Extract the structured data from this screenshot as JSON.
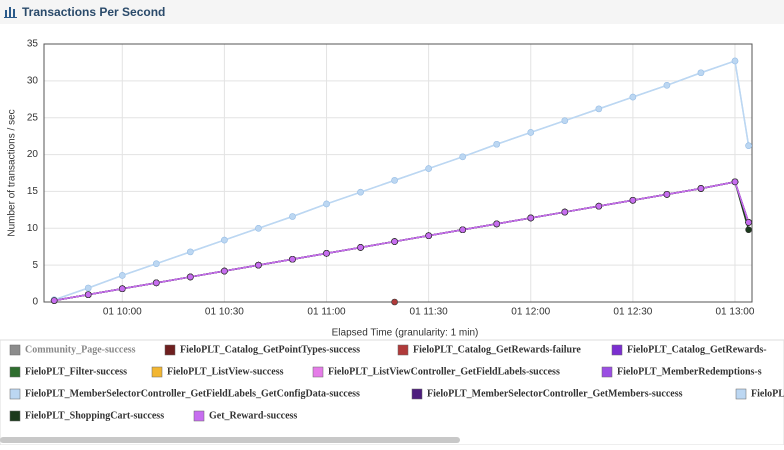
{
  "header": {
    "title": "Transactions Per Second"
  },
  "chart_data": {
    "type": "line",
    "y_label": "Number of transactions / sec",
    "x_label": "Elapsed Time (granularity: 1 min)",
    "xlim": [
      577,
      785
    ],
    "ylim": [
      0,
      35
    ],
    "yticks": [
      0,
      5,
      10,
      15,
      20,
      25,
      30,
      35
    ],
    "xticks": [
      {
        "value": 600,
        "label": "01 10:00"
      },
      {
        "value": 630,
        "label": "01 10:30"
      },
      {
        "value": 660,
        "label": "01 11:00"
      },
      {
        "value": 690,
        "label": "01 11:30"
      },
      {
        "value": 720,
        "label": "01 12:00"
      },
      {
        "value": 750,
        "label": "01 12:30"
      },
      {
        "value": 780,
        "label": "01 13:00"
      }
    ],
    "grid": true,
    "x": [
      580,
      590,
      600,
      610,
      620,
      630,
      640,
      650,
      660,
      670,
      680,
      690,
      700,
      710,
      720,
      730,
      740,
      750,
      760,
      770,
      780,
      784
    ],
    "series": [
      {
        "name": "Community_Page-success",
        "color": "#8c8c8c",
        "values": [
          0.2,
          1.0,
          1.8,
          2.6,
          3.4,
          4.2,
          5.0,
          5.8,
          6.6,
          7.4,
          8.2,
          9.0,
          9.8,
          10.6,
          11.4,
          12.2,
          13.0,
          13.8,
          14.6,
          15.4,
          16.3,
          10.8
        ]
      },
      {
        "name": "FieloPLT_Catalog_GetPointTypes-success",
        "color": "#6e1f1f",
        "values": [
          0.2,
          1.0,
          1.8,
          2.6,
          3.4,
          4.2,
          5.0,
          5.8,
          6.6,
          7.4,
          8.2,
          9.0,
          9.8,
          10.6,
          11.4,
          12.2,
          13.0,
          13.8,
          14.6,
          15.4,
          16.3,
          10.8
        ]
      },
      {
        "name": "FieloPLT_Catalog_GetRewards-failure",
        "color": "#b03a3a",
        "values": [
          null,
          null,
          null,
          null,
          null,
          null,
          null,
          null,
          null,
          null,
          0,
          null,
          null,
          null,
          null,
          null,
          null,
          null,
          null,
          null,
          null,
          null
        ]
      },
      {
        "name": "FieloPLT_Catalog_GetRewards-",
        "color": "#7b2fd0",
        "values": [
          0.2,
          1.0,
          1.8,
          2.6,
          3.4,
          4.2,
          5.0,
          5.8,
          6.6,
          7.4,
          8.2,
          9.0,
          9.8,
          10.6,
          11.4,
          12.2,
          13.0,
          13.8,
          14.6,
          15.4,
          16.3,
          10.8
        ]
      },
      {
        "name": "FieloPLT_Filter-success",
        "color": "#2f6e2f",
        "values": [
          0.2,
          1.0,
          1.8,
          2.6,
          3.4,
          4.2,
          5.0,
          5.8,
          6.6,
          7.4,
          8.2,
          9.0,
          9.8,
          10.6,
          11.4,
          12.2,
          13.0,
          13.8,
          14.6,
          15.4,
          16.3,
          10.8
        ]
      },
      {
        "name": "FieloPLT_ListView-success",
        "color": "#f2b632",
        "values": [
          0.2,
          1.0,
          1.8,
          2.6,
          3.4,
          4.2,
          5.0,
          5.8,
          6.6,
          7.4,
          8.2,
          9.0,
          9.8,
          10.6,
          11.4,
          12.2,
          13.0,
          13.8,
          14.6,
          15.4,
          16.3,
          10.8
        ]
      },
      {
        "name": "FieloPLT_ListViewController_GetFieldLabels-success",
        "color": "#e57ce8",
        "values": [
          0.2,
          1.0,
          1.8,
          2.6,
          3.4,
          4.2,
          5.0,
          5.8,
          6.6,
          7.4,
          8.2,
          9.0,
          9.8,
          10.6,
          11.4,
          12.2,
          13.0,
          13.8,
          14.6,
          15.4,
          16.3,
          10.8
        ]
      },
      {
        "name": "FieloPLT_MemberRedemptions-s",
        "color": "#9b4fe3",
        "values": [
          0.2,
          1.0,
          1.8,
          2.6,
          3.4,
          4.2,
          5.0,
          5.8,
          6.6,
          7.4,
          8.2,
          9.0,
          9.8,
          10.6,
          11.4,
          12.2,
          13.0,
          13.8,
          14.6,
          15.4,
          16.3,
          10.8
        ]
      },
      {
        "name": "FieloPLT_MemberSelectorController_GetFieldLabels_GetConfigData-success",
        "color": "#bcd7f2",
        "values": [
          0.3,
          1.9,
          3.6,
          5.2,
          6.8,
          8.4,
          10.0,
          11.6,
          13.3,
          14.9,
          16.5,
          18.1,
          19.7,
          21.4,
          23.0,
          24.6,
          26.2,
          27.8,
          29.4,
          31.1,
          32.7,
          21.2
        ]
      },
      {
        "name": "FieloPLT_MemberSelectorController_GetMembers-success",
        "color": "#4d1d7d",
        "values": [
          0.2,
          1.0,
          1.8,
          2.6,
          3.4,
          4.2,
          5.0,
          5.8,
          6.6,
          7.4,
          8.2,
          9.0,
          9.8,
          10.6,
          11.4,
          12.2,
          13.0,
          13.8,
          14.6,
          15.4,
          16.3,
          10.8
        ]
      },
      {
        "name": "FieloPL",
        "color": "#bcd7f2",
        "values": [
          0.3,
          1.9,
          3.6,
          5.2,
          6.8,
          8.4,
          10.0,
          11.6,
          13.3,
          14.9,
          16.5,
          18.1,
          19.7,
          21.4,
          23.0,
          24.6,
          26.2,
          27.8,
          29.4,
          31.1,
          32.7,
          21.2
        ]
      },
      {
        "name": "FieloPLT_ShoppingCart-success",
        "color": "#1c3a1c",
        "values": [
          0.2,
          1.0,
          1.8,
          2.6,
          3.4,
          4.2,
          5.0,
          5.8,
          6.6,
          7.4,
          8.2,
          9.0,
          9.8,
          10.6,
          11.4,
          12.2,
          13.0,
          13.8,
          14.6,
          15.4,
          16.3,
          9.8
        ]
      },
      {
        "name": "Get_Reward-success",
        "color": "#c76df0",
        "values": [
          0.2,
          1.0,
          1.8,
          2.6,
          3.4,
          4.2,
          5.0,
          5.8,
          6.6,
          7.4,
          8.2,
          9.0,
          9.8,
          10.6,
          11.4,
          12.2,
          13.0,
          13.8,
          14.6,
          15.4,
          16.3,
          10.8
        ]
      }
    ]
  }
}
